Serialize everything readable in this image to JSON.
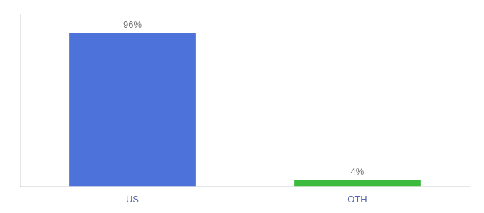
{
  "chart_data": {
    "type": "bar",
    "categories": [
      "US",
      "OTH"
    ],
    "values": [
      96,
      4
    ],
    "value_labels": [
      "96%",
      "4%"
    ],
    "colors": [
      "#4d72d9",
      "#3dbb3d"
    ],
    "ylim": [
      0,
      108
    ],
    "data_labels": true,
    "tick_labels": "x",
    "grid": false
  }
}
